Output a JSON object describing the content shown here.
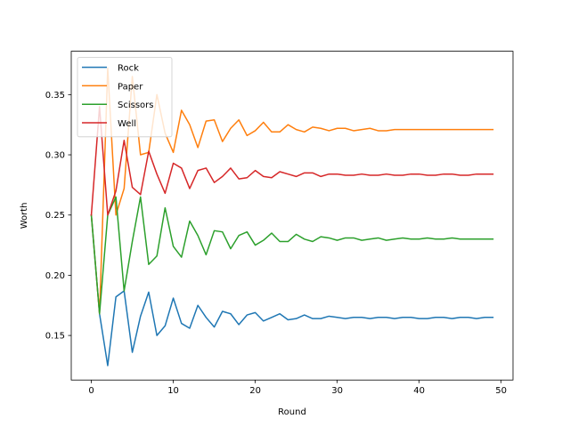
{
  "chart_data": {
    "type": "line",
    "title": "",
    "xlabel": "Round",
    "ylabel": "Worth",
    "xlim": [
      -2.45,
      51.45
    ],
    "ylim": [
      0.113,
      0.386
    ],
    "xticks": [
      0,
      10,
      20,
      30,
      40,
      50
    ],
    "yticks": [
      0.15,
      0.2,
      0.25,
      0.3,
      0.35
    ],
    "ytick_labels": [
      "0.15",
      "0.20",
      "0.25",
      "0.30",
      "0.35"
    ],
    "grid": false,
    "legend_position": "top-left",
    "x": [
      0,
      1,
      2,
      3,
      4,
      5,
      6,
      7,
      8,
      9,
      10,
      11,
      12,
      13,
      14,
      15,
      16,
      17,
      18,
      19,
      20,
      21,
      22,
      23,
      24,
      25,
      26,
      27,
      28,
      29,
      30,
      31,
      32,
      33,
      34,
      35,
      36,
      37,
      38,
      39,
      40,
      41,
      42,
      43,
      44,
      45,
      46,
      47,
      48,
      49
    ],
    "series": [
      {
        "name": "Rock",
        "color": "#1f77b4",
        "values": [
          0.25,
          0.168,
          0.125,
          0.182,
          0.187,
          0.136,
          0.166,
          0.186,
          0.15,
          0.158,
          0.181,
          0.16,
          0.156,
          0.175,
          0.165,
          0.157,
          0.17,
          0.168,
          0.159,
          0.167,
          0.169,
          0.162,
          0.165,
          0.168,
          0.163,
          0.164,
          0.167,
          0.164,
          0.164,
          0.166,
          0.165,
          0.164,
          0.165,
          0.165,
          0.164,
          0.165,
          0.165,
          0.164,
          0.165,
          0.165,
          0.164,
          0.164,
          0.165,
          0.165,
          0.164,
          0.165,
          0.165,
          0.164,
          0.165,
          0.165
        ]
      },
      {
        "name": "Paper",
        "color": "#ff7f0e",
        "values": [
          0.25,
          0.168,
          0.372,
          0.25,
          0.272,
          0.365,
          0.3,
          0.302,
          0.35,
          0.318,
          0.302,
          0.337,
          0.325,
          0.306,
          0.328,
          0.329,
          0.311,
          0.322,
          0.329,
          0.316,
          0.32,
          0.327,
          0.319,
          0.319,
          0.325,
          0.321,
          0.319,
          0.323,
          0.322,
          0.32,
          0.322,
          0.322,
          0.32,
          0.321,
          0.322,
          0.32,
          0.32,
          0.321,
          0.321,
          0.321,
          0.321,
          0.321,
          0.321,
          0.321,
          0.321,
          0.321,
          0.321,
          0.321,
          0.321,
          0.321
        ]
      },
      {
        "name": "Scissors",
        "color": "#2ca02c",
        "values": [
          0.25,
          0.168,
          0.25,
          0.265,
          0.187,
          0.228,
          0.265,
          0.209,
          0.216,
          0.256,
          0.224,
          0.215,
          0.245,
          0.233,
          0.217,
          0.237,
          0.236,
          0.222,
          0.233,
          0.236,
          0.225,
          0.229,
          0.235,
          0.228,
          0.228,
          0.234,
          0.23,
          0.228,
          0.232,
          0.231,
          0.229,
          0.231,
          0.231,
          0.229,
          0.23,
          0.231,
          0.229,
          0.23,
          0.231,
          0.23,
          0.23,
          0.231,
          0.23,
          0.23,
          0.231,
          0.23,
          0.23,
          0.23,
          0.23,
          0.23
        ]
      },
      {
        "name": "Well",
        "color": "#d62728",
        "values": [
          0.25,
          0.34,
          0.25,
          0.27,
          0.312,
          0.273,
          0.267,
          0.303,
          0.284,
          0.268,
          0.293,
          0.289,
          0.272,
          0.287,
          0.289,
          0.277,
          0.282,
          0.289,
          0.28,
          0.281,
          0.287,
          0.282,
          0.281,
          0.286,
          0.284,
          0.282,
          0.285,
          0.285,
          0.282,
          0.284,
          0.284,
          0.283,
          0.283,
          0.284,
          0.283,
          0.283,
          0.284,
          0.283,
          0.283,
          0.284,
          0.284,
          0.283,
          0.283,
          0.284,
          0.284,
          0.283,
          0.283,
          0.284,
          0.284,
          0.284
        ]
      }
    ]
  }
}
